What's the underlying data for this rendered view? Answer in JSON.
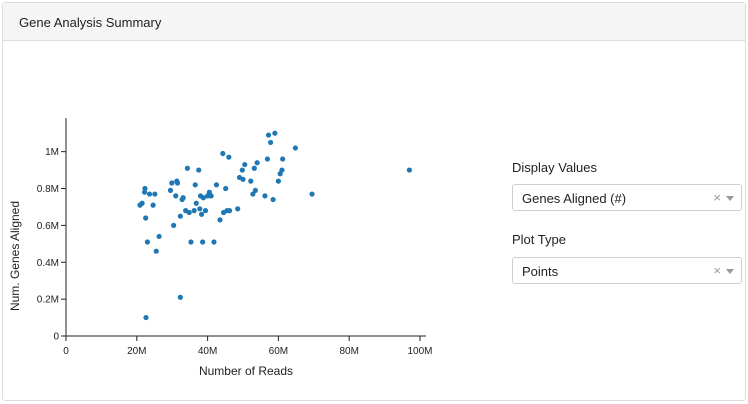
{
  "panel": {
    "title": "Gene Analysis Summary"
  },
  "controls": {
    "display_values": {
      "label": "Display Values",
      "selected": "Genes Aligned (#)",
      "clear_glyph": "×",
      "icon": "chevron-down-icon"
    },
    "plot_type": {
      "label": "Plot Type",
      "selected": "Points",
      "clear_glyph": "×",
      "icon": "chevron-down-icon"
    }
  },
  "colors": {
    "point": "#1f77b4",
    "axis": "#222222"
  },
  "chart_data": {
    "type": "scatter",
    "xlabel": "Number of Reads",
    "ylabel": "Num. Genes Aligned",
    "xlim": [
      0,
      100000000
    ],
    "ylim": [
      0,
      1150000
    ],
    "x_ticks": [
      {
        "value": 0,
        "label": "0"
      },
      {
        "value": 20000000,
        "label": "20M"
      },
      {
        "value": 40000000,
        "label": "40M"
      },
      {
        "value": 60000000,
        "label": "60M"
      },
      {
        "value": 80000000,
        "label": "80M"
      },
      {
        "value": 100000000,
        "label": "100M"
      }
    ],
    "y_ticks": [
      {
        "value": 0,
        "label": "0"
      },
      {
        "value": 200000,
        "label": "0.2M"
      },
      {
        "value": 400000,
        "label": "0.4M"
      },
      {
        "value": 600000,
        "label": "0.6M"
      },
      {
        "value": 800000,
        "label": "0.8M"
      },
      {
        "value": 1000000,
        "label": "1M"
      }
    ],
    "grid": false,
    "points": [
      [
        20.9,
        0.71
      ],
      [
        21.5,
        0.72
      ],
      [
        22.2,
        0.78
      ],
      [
        22.3,
        0.8
      ],
      [
        22.5,
        0.64
      ],
      [
        23.0,
        0.51
      ],
      [
        23.6,
        0.77
      ],
      [
        24.6,
        0.71
      ],
      [
        25.1,
        0.77
      ],
      [
        25.5,
        0.46
      ],
      [
        26.3,
        0.54
      ],
      [
        22.6,
        0.1
      ],
      [
        29.5,
        0.79
      ],
      [
        29.9,
        0.83
      ],
      [
        30.4,
        0.6
      ],
      [
        31.0,
        0.76
      ],
      [
        31.3,
        0.84
      ],
      [
        31.5,
        0.83
      ],
      [
        32.3,
        0.65
      ],
      [
        32.3,
        0.21
      ],
      [
        32.8,
        0.74
      ],
      [
        33.1,
        0.75
      ],
      [
        33.8,
        0.68
      ],
      [
        34.3,
        0.91
      ],
      [
        34.8,
        0.67
      ],
      [
        35.3,
        0.51
      ],
      [
        36.2,
        0.68
      ],
      [
        36.5,
        0.82
      ],
      [
        36.8,
        0.72
      ],
      [
        37.5,
        0.9
      ],
      [
        37.8,
        0.69
      ],
      [
        38.0,
        0.76
      ],
      [
        38.3,
        0.66
      ],
      [
        38.6,
        0.51
      ],
      [
        38.8,
        0.75
      ],
      [
        39.4,
        0.68
      ],
      [
        40.0,
        0.76
      ],
      [
        40.5,
        0.78
      ],
      [
        41.0,
        0.76
      ],
      [
        41.8,
        0.51
      ],
      [
        42.5,
        0.82
      ],
      [
        43.5,
        0.63
      ],
      [
        44.3,
        0.99
      ],
      [
        44.5,
        0.67
      ],
      [
        45.1,
        0.8
      ],
      [
        45.5,
        0.68
      ],
      [
        46.0,
        0.97
      ],
      [
        46.2,
        0.68
      ],
      [
        48.5,
        0.69
      ],
      [
        49.0,
        0.86
      ],
      [
        49.8,
        0.9
      ],
      [
        50.0,
        0.85
      ],
      [
        50.5,
        0.93
      ],
      [
        52.2,
        0.84
      ],
      [
        52.8,
        0.77
      ],
      [
        53.2,
        0.91
      ],
      [
        53.5,
        0.79
      ],
      [
        54.0,
        0.94
      ],
      [
        56.2,
        0.76
      ],
      [
        56.9,
        0.96
      ],
      [
        57.2,
        1.09
      ],
      [
        57.8,
        1.05
      ],
      [
        58.5,
        0.74
      ],
      [
        59.0,
        1.1
      ],
      [
        60.0,
        0.84
      ],
      [
        60.5,
        0.88
      ],
      [
        61.0,
        0.9
      ],
      [
        61.2,
        0.96
      ],
      [
        64.8,
        1.02
      ],
      [
        69.5,
        0.77
      ],
      [
        97.0,
        0.9
      ]
    ],
    "point_units": {
      "x": "millions of reads",
      "y": "millions of genes"
    }
  }
}
